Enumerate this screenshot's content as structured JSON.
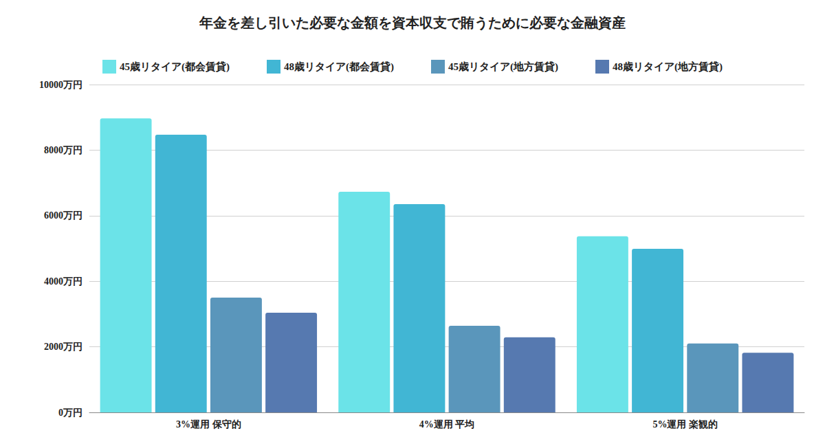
{
  "chart_data": {
    "type": "bar",
    "title": "年金を差し引いた必要な金額を資本収支で賄うために必要な金融資産",
    "categories": [
      "3%運用 保守的",
      "4%運用 平均",
      "5%運用 楽観的"
    ],
    "series": [
      {
        "name": "45歳リタイア(都会賃貸)",
        "color": "#6be3e8",
        "values": [
          8970,
          6730,
          5370
        ]
      },
      {
        "name": "48歳リタイア(都会賃貸)",
        "color": "#41b6d4",
        "values": [
          8470,
          6350,
          4990
        ]
      },
      {
        "name": "45歳リタイア(地方賃貸)",
        "color": "#5a96bb",
        "values": [
          3500,
          2640,
          2100
        ]
      },
      {
        "name": "48歳リタイア(地方賃貸)",
        "color": "#5679b0",
        "values": [
          3040,
          2290,
          1820
        ]
      }
    ],
    "ylim": [
      0,
      10000
    ],
    "yticks": [
      {
        "value": 0,
        "label": "0万円"
      },
      {
        "value": 2000,
        "label": "2000万円"
      },
      {
        "value": 4000,
        "label": "4000万円"
      },
      {
        "value": 6000,
        "label": "6000万円"
      },
      {
        "value": 8000,
        "label": "8000万円"
      },
      {
        "value": 10000,
        "label": "10000万円"
      }
    ],
    "grid": true,
    "legend": "top"
  }
}
